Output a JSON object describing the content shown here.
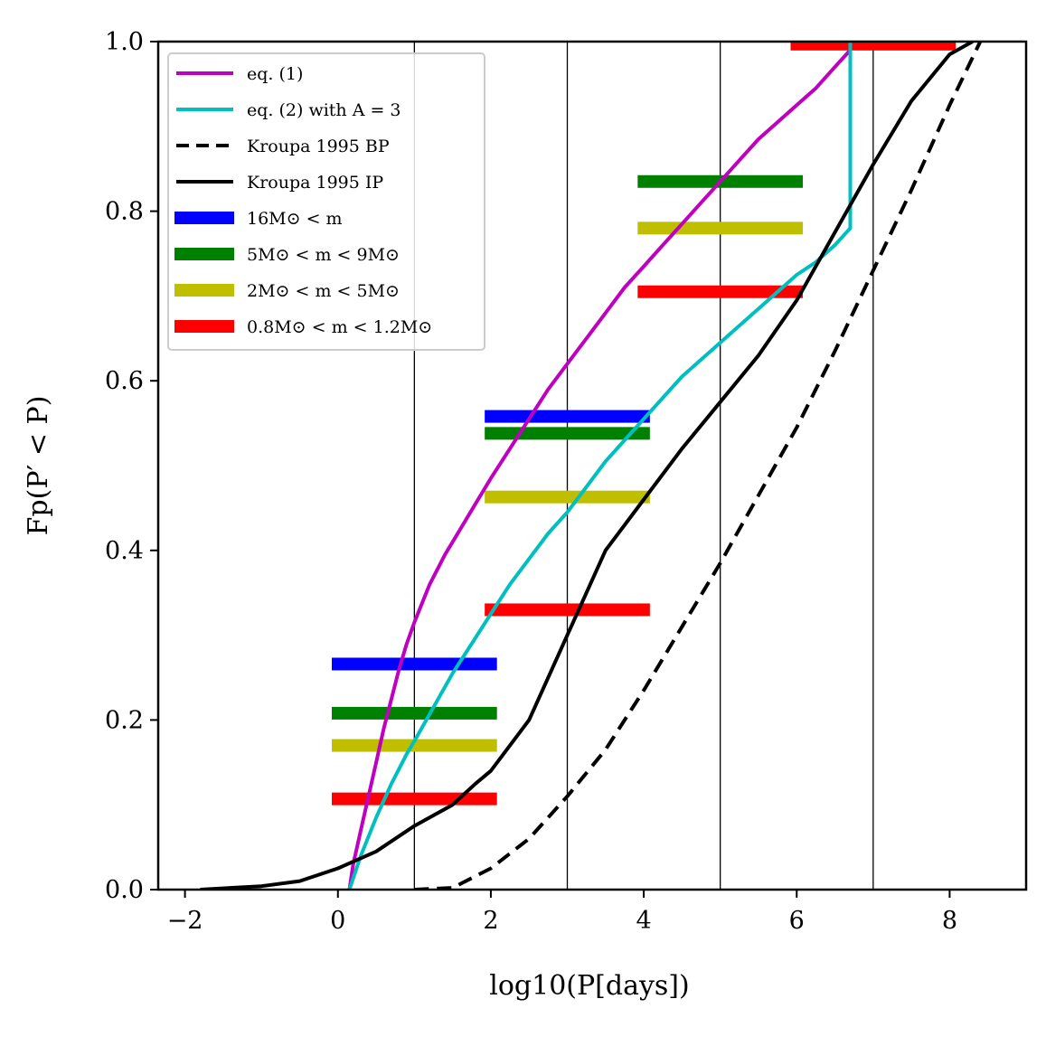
{
  "chart_data": {
    "type": "line",
    "title": "",
    "xlabel": "log10(P[days])",
    "ylabel": "Fp(P′ < P)",
    "xlim": [
      -2.35,
      9.0
    ],
    "ylim": [
      0.0,
      1.0
    ],
    "x_ticks": [
      -2,
      0,
      2,
      4,
      6,
      8
    ],
    "x_tick_labels": [
      "−2",
      "0",
      "2",
      "4",
      "6",
      "8"
    ],
    "y_ticks": [
      0.0,
      0.2,
      0.4,
      0.6,
      0.8,
      1.0
    ],
    "y_tick_labels": [
      "0.0",
      "0.2",
      "0.4",
      "0.6",
      "0.8",
      "1.0"
    ],
    "vertical_lines": [
      1,
      3,
      5,
      7
    ],
    "legend_position": "top-left",
    "series": [
      {
        "name": "eq. (1)",
        "style": "solid",
        "color": "#bf00bf",
        "x": [
          0.15,
          0.2,
          0.3,
          0.4,
          0.5,
          0.6,
          0.7,
          0.8,
          0.9,
          1.0,
          1.2,
          1.4,
          1.6,
          1.8,
          2.0,
          2.25,
          2.5,
          2.75,
          3.0,
          3.25,
          3.5,
          3.75,
          4.0,
          4.25,
          4.5,
          4.75,
          5.0,
          5.25,
          5.5,
          5.75,
          6.0,
          6.25,
          6.5,
          6.7
        ],
        "y": [
          0.0,
          0.03,
          0.07,
          0.11,
          0.15,
          0.19,
          0.225,
          0.26,
          0.29,
          0.315,
          0.36,
          0.395,
          0.425,
          0.455,
          0.485,
          0.52,
          0.555,
          0.59,
          0.62,
          0.65,
          0.68,
          0.71,
          0.735,
          0.76,
          0.785,
          0.81,
          0.835,
          0.86,
          0.885,
          0.905,
          0.925,
          0.945,
          0.97,
          0.99
        ]
      },
      {
        "name": "eq. (2) with A = 3",
        "style": "solid",
        "color": "#00bfbf",
        "x": [
          0.15,
          0.3,
          0.5,
          0.7,
          0.9,
          1.0,
          1.25,
          1.5,
          1.75,
          2.0,
          2.25,
          2.5,
          2.75,
          3.0,
          3.25,
          3.5,
          3.75,
          4.0,
          4.25,
          4.5,
          4.75,
          5.0,
          5.25,
          5.5,
          5.75,
          6.0,
          6.25,
          6.5,
          6.7,
          6.7,
          6.7
        ],
        "y": [
          0.0,
          0.04,
          0.085,
          0.125,
          0.16,
          0.175,
          0.215,
          0.255,
          0.29,
          0.325,
          0.36,
          0.39,
          0.42,
          0.445,
          0.475,
          0.505,
          0.53,
          0.555,
          0.58,
          0.605,
          0.625,
          0.645,
          0.665,
          0.685,
          0.705,
          0.725,
          0.74,
          0.76,
          0.78,
          0.9,
          1.0
        ]
      },
      {
        "name": "Kroupa 1995 BP",
        "style": "dashed",
        "color": "#000000",
        "x": [
          1.0,
          1.5,
          2.0,
          2.5,
          3.0,
          3.5,
          4.0,
          4.5,
          5.0,
          5.5,
          6.0,
          6.5,
          7.0,
          7.5,
          8.0,
          8.4
        ],
        "y": [
          0.0,
          0.002,
          0.025,
          0.06,
          0.11,
          0.165,
          0.235,
          0.31,
          0.385,
          0.465,
          0.545,
          0.635,
          0.73,
          0.825,
          0.925,
          1.0
        ]
      },
      {
        "name": "Kroupa 1995 IP",
        "style": "solid",
        "color": "#000000",
        "x": [
          -1.8,
          -1.0,
          -0.5,
          0.0,
          0.5,
          1.0,
          1.5,
          1.8,
          2.0,
          2.5,
          2.8,
          3.0,
          3.3,
          3.5,
          4.0,
          4.5,
          5.0,
          5.5,
          6.0,
          6.5,
          7.0,
          7.5,
          8.0,
          8.3
        ],
        "y": [
          0.0,
          0.004,
          0.01,
          0.025,
          0.045,
          0.075,
          0.1,
          0.125,
          0.14,
          0.2,
          0.26,
          0.3,
          0.36,
          0.4,
          0.46,
          0.52,
          0.575,
          0.63,
          0.695,
          0.775,
          0.855,
          0.93,
          0.985,
          1.0
        ]
      }
    ],
    "range_bars": [
      {
        "group": "16M⊙ < m",
        "color": "#0000ff",
        "x": [
          0,
          2
        ],
        "y": 0.266
      },
      {
        "group": "5M⊙ < m < 9M⊙",
        "color": "#008000",
        "x": [
          0,
          2
        ],
        "y": 0.208
      },
      {
        "group": "2M⊙ < m < 5M⊙",
        "color": "#bfbf00",
        "x": [
          0,
          2
        ],
        "y": 0.17
      },
      {
        "group": "0.8M⊙ < m < 1.2M⊙",
        "color": "#ff0000",
        "x": [
          0,
          2
        ],
        "y": 0.107
      },
      {
        "group": "16M⊙ < m",
        "color": "#0000ff",
        "x": [
          2,
          4
        ],
        "y": 0.558
      },
      {
        "group": "5M⊙ < m < 9M⊙",
        "color": "#008000",
        "x": [
          2,
          4
        ],
        "y": 0.538
      },
      {
        "group": "2M⊙ < m < 5M⊙",
        "color": "#bfbf00",
        "x": [
          2,
          4
        ],
        "y": 0.463
      },
      {
        "group": "0.8M⊙ < m < 1.2M⊙",
        "color": "#ff0000",
        "x": [
          2,
          4
        ],
        "y": 0.33
      },
      {
        "group": "5M⊙ < m < 9M⊙",
        "color": "#008000",
        "x": [
          4,
          6
        ],
        "y": 0.835
      },
      {
        "group": "2M⊙ < m < 5M⊙",
        "color": "#bfbf00",
        "x": [
          4,
          6
        ],
        "y": 0.78
      },
      {
        "group": "0.8M⊙ < m < 1.2M⊙",
        "color": "#ff0000",
        "x": [
          4,
          6
        ],
        "y": 0.705
      },
      {
        "group": "0.8M⊙ < m < 1.2M⊙",
        "color": "#ff0000",
        "x": [
          6,
          8
        ],
        "y": 0.997
      }
    ],
    "legend": [
      {
        "label": "eq. (1)",
        "kind": "line",
        "style": "solid",
        "color": "#bf00bf"
      },
      {
        "label": "eq. (2) with A = 3",
        "kind": "line",
        "style": "solid",
        "color": "#00bfbf"
      },
      {
        "label": "Kroupa 1995 BP",
        "kind": "line",
        "style": "dashed",
        "color": "#000000"
      },
      {
        "label": "Kroupa 1995 IP",
        "kind": "line",
        "style": "solid",
        "color": "#000000"
      },
      {
        "label": "16M⊙ < m",
        "kind": "bar",
        "color": "#0000ff"
      },
      {
        "label": "5M⊙ < m < 9M⊙",
        "kind": "bar",
        "color": "#008000"
      },
      {
        "label": "2M⊙ < m < 5M⊙",
        "kind": "bar",
        "color": "#bfbf00"
      },
      {
        "label": "0.8M⊙ < m < 1.2M⊙",
        "kind": "bar",
        "color": "#ff0000"
      }
    ]
  }
}
